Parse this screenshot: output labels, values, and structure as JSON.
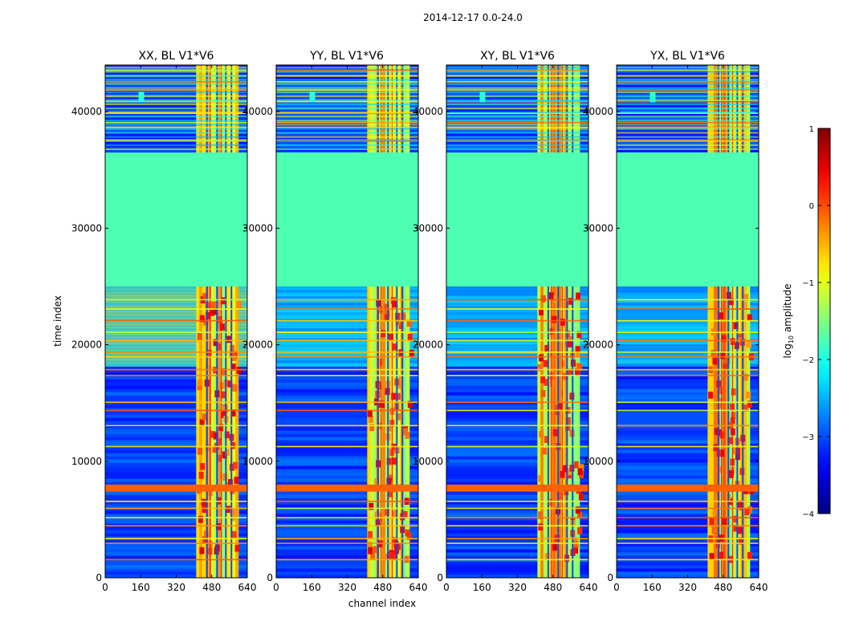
{
  "chart_data": {
    "type": "heatmap",
    "suptitle": "2014-12-17 0.0-24.0",
    "xlabel": "channel index",
    "ylabel": "time index",
    "xlim": [
      0,
      640
    ],
    "ylim": [
      0,
      44000
    ],
    "x_ticks": [
      0,
      160,
      320,
      480,
      640
    ],
    "y_ticks": [
      0,
      10000,
      20000,
      30000,
      40000
    ],
    "panels": [
      {
        "title": "XX, BL V1*V6",
        "flagged_level": 0.45
      },
      {
        "title": "YY, BL V1*V6",
        "flagged_level": 0.45
      },
      {
        "title": "XY, BL V1*V6",
        "flagged_level": 0.45
      },
      {
        "title": "YX, BL V1*V6",
        "flagged_level": 0.45
      }
    ],
    "flagged_time_range": [
      25000,
      36500
    ],
    "rfi_channel_range": [
      410,
      600
    ],
    "strong_row_band": [
      7400,
      8000
    ],
    "colorbar": {
      "label": "log10 amplitude",
      "label_base": "log",
      "label_sub": "10",
      "label_rest": " amplitude",
      "range": [
        -4,
        1
      ],
      "ticks": [
        1,
        0,
        -1,
        -2,
        -3,
        -4
      ],
      "tick_labels": [
        "1",
        "0",
        "−1",
        "−2",
        "−3",
        "−4"
      ],
      "colormap": "jet"
    }
  }
}
